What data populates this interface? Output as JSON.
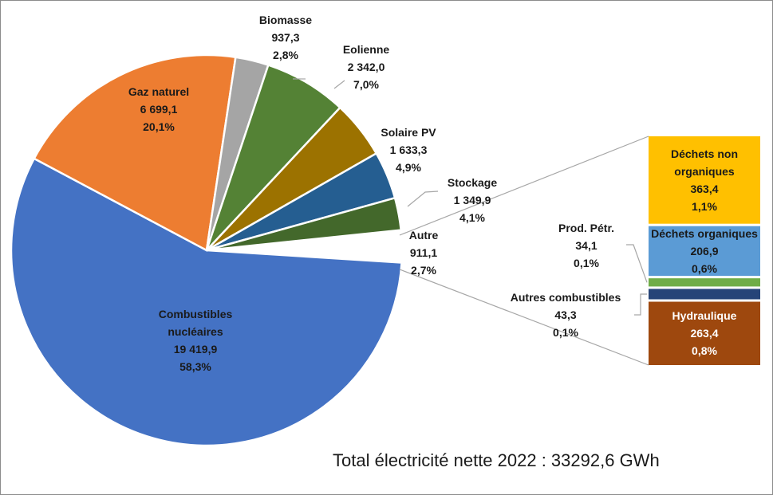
{
  "chart_data": {
    "type": "pie",
    "subtype": "bar-of-pie",
    "title": "",
    "total_label": "Total électricité nette 2022 : 33292,6 GWh",
    "pie": [
      {
        "name": "Combustibles nucléaires",
        "label": [
          "Combustibles",
          "nucléaires"
        ],
        "value": 19419.9,
        "value_text": "19 419,9",
        "percent_text": "58,3%",
        "color": "#4472c4"
      },
      {
        "name": "Gaz naturel",
        "label": [
          "Gaz naturel"
        ],
        "value": 6699.1,
        "value_text": "6 699,1",
        "percent_text": "20,1%",
        "color": "#ed7d31"
      },
      {
        "name": "Biomasse",
        "label": [
          "Biomasse"
        ],
        "value": 937.3,
        "value_text": "937,3",
        "percent_text": "2,8%",
        "color": "#a5a5a5"
      },
      {
        "name": "Eolienne",
        "label": [
          "Eolienne"
        ],
        "value": 2342.0,
        "value_text": "2 342,0",
        "percent_text": "7,0%",
        "color": "#548235"
      },
      {
        "name": "Solaire PV",
        "label": [
          "Solaire PV"
        ],
        "value": 1633.3,
        "value_text": "1 633,3",
        "percent_text": "4,9%",
        "color": "#9c7200"
      },
      {
        "name": "Stockage",
        "label": [
          "Stockage"
        ],
        "value": 1349.9,
        "value_text": "1 349,9",
        "percent_text": "4,1%",
        "color": "#255e91"
      },
      {
        "name": "Autre",
        "label": [
          "Autre"
        ],
        "value": 911.1,
        "value_text": "911,1",
        "percent_text": "2,7%",
        "color": "#43682b"
      }
    ],
    "bar": [
      {
        "name": "Déchets non organiques",
        "label": [
          "Déchets non",
          "organiques"
        ],
        "value": 363.4,
        "value_text": "363,4",
        "percent_text": "1,1%",
        "color": "#ffc000",
        "text_style": "dark"
      },
      {
        "name": "Déchets organiques",
        "label": [
          "Déchets organiques"
        ],
        "value": 206.9,
        "value_text": "206,9",
        "percent_text": "0,6%",
        "color": "#5b9bd5",
        "text_style": "dark"
      },
      {
        "name": "Prod. Pétr.",
        "label": [
          "Prod. Pétr."
        ],
        "value": 34.1,
        "value_text": "34,1",
        "percent_text": "0,1%",
        "color": "#70ad47",
        "text_style": "outside"
      },
      {
        "name": "Autres combustibles",
        "label": [
          "Autres combustibles"
        ],
        "value": 43.3,
        "value_text": "43,3",
        "percent_text": "0,1%",
        "color": "#264478",
        "text_style": "outside"
      },
      {
        "name": "Hydraulique",
        "label": [
          "Hydraulique"
        ],
        "value": 263.4,
        "value_text": "263,4",
        "percent_text": "0,8%",
        "color": "#9e480e",
        "text_style": "light"
      }
    ],
    "legend": "none"
  }
}
